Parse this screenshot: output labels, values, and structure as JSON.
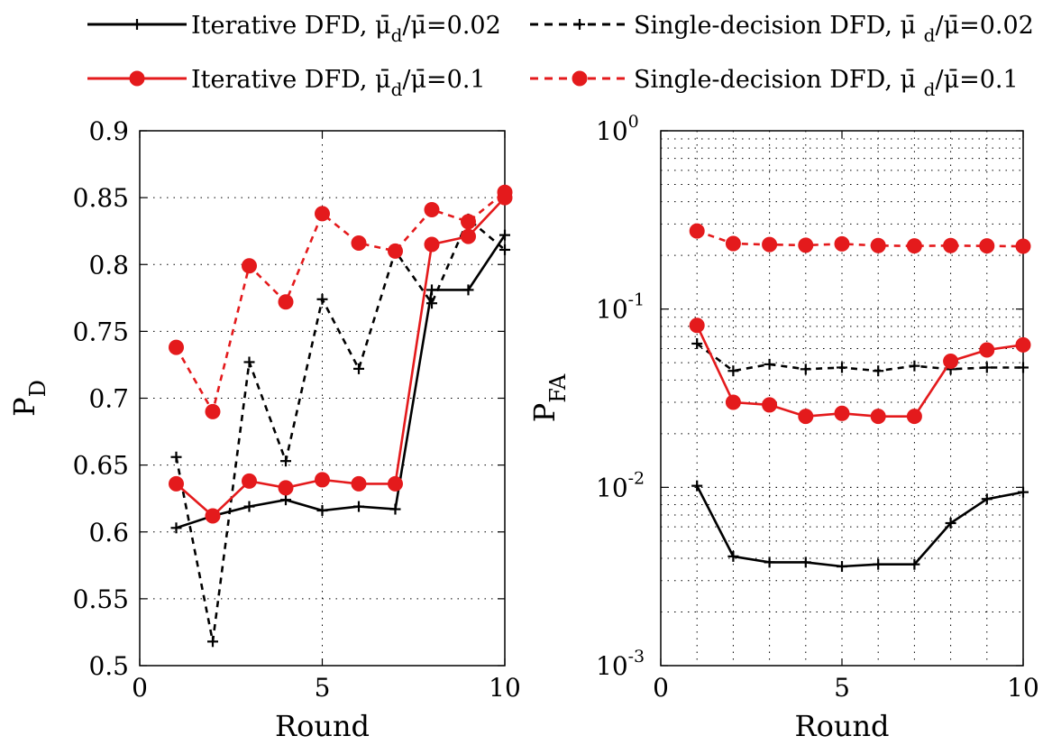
{
  "chart_data": [
    {
      "type": "line",
      "xlabel": "Round",
      "ylabel": "P",
      "ylabel_sub": "D",
      "xlim": [
        0,
        10
      ],
      "ylim": [
        0.5,
        0.9
      ],
      "xticks": [
        "0",
        "5",
        "10"
      ],
      "yticks": [
        "0.5",
        "0.55",
        "0.6",
        "0.65",
        "0.7",
        "0.75",
        "0.8",
        "0.85",
        "0.9"
      ],
      "yscale": "linear",
      "grid": true,
      "series": [
        {
          "name_key": 0,
          "x": [
            1,
            2,
            3,
            4,
            5,
            6,
            7,
            8,
            9,
            10
          ],
          "y": [
            0.603,
            0.612,
            0.619,
            0.624,
            0.616,
            0.619,
            0.617,
            0.781,
            0.781,
            0.822
          ]
        },
        {
          "name_key": 1,
          "x": [
            1,
            2,
            3,
            4,
            5,
            6,
            7,
            8,
            9,
            10
          ],
          "y": [
            0.656,
            0.518,
            0.727,
            0.653,
            0.774,
            0.722,
            0.81,
            0.771,
            0.834,
            0.811
          ]
        },
        {
          "name_key": 2,
          "x": [
            1,
            2,
            3,
            4,
            5,
            6,
            7,
            8,
            9,
            10
          ],
          "y": [
            0.636,
            0.612,
            0.638,
            0.633,
            0.639,
            0.636,
            0.636,
            0.815,
            0.821,
            0.85
          ]
        },
        {
          "name_key": 3,
          "x": [
            1,
            2,
            3,
            4,
            5,
            6,
            7,
            8,
            9,
            10
          ],
          "y": [
            0.738,
            0.69,
            0.799,
            0.772,
            0.838,
            0.816,
            0.81,
            0.841,
            0.832,
            0.854
          ]
        }
      ]
    },
    {
      "type": "line",
      "xlabel": "Round",
      "ylabel": "P",
      "ylabel_sub": "FA",
      "xlim": [
        0,
        10
      ],
      "ylim": [
        0.001,
        1
      ],
      "xticks": [
        "0",
        "5",
        "10"
      ],
      "yticks": [
        {
          "base": "10",
          "exp": "-3",
          "value": 0.001
        },
        {
          "base": "10",
          "exp": "-2",
          "value": 0.01
        },
        {
          "base": "10",
          "exp": "-1",
          "value": 0.1
        },
        {
          "base": "10",
          "exp": "0",
          "value": 1
        }
      ],
      "yscale": "log",
      "grid": true,
      "series": [
        {
          "name_key": 0,
          "x": [
            1,
            2,
            3,
            4,
            5,
            6,
            7,
            8,
            9,
            10
          ],
          "y": [
            0.0102,
            0.0041,
            0.0038,
            0.0038,
            0.0036,
            0.0037,
            0.0037,
            0.0063,
            0.0086,
            0.0094
          ]
        },
        {
          "name_key": 1,
          "x": [
            1,
            2,
            3,
            4,
            5,
            6,
            7,
            8,
            9,
            10
          ],
          "y": [
            0.064,
            0.045,
            0.049,
            0.046,
            0.047,
            0.045,
            0.048,
            0.046,
            0.047,
            0.047
          ]
        },
        {
          "name_key": 2,
          "x": [
            1,
            2,
            3,
            4,
            5,
            6,
            7,
            8,
            9,
            10
          ],
          "y": [
            0.081,
            0.03,
            0.029,
            0.025,
            0.026,
            0.025,
            0.025,
            0.051,
            0.059,
            0.063
          ]
        },
        {
          "name_key": 3,
          "x": [
            1,
            2,
            3,
            4,
            5,
            6,
            7,
            8,
            9,
            10
          ],
          "y": [
            0.274,
            0.233,
            0.23,
            0.228,
            0.232,
            0.227,
            0.226,
            0.227,
            0.226,
            0.225
          ]
        }
      ]
    }
  ],
  "legend": {
    "placement": "top",
    "entries": [
      {
        "label_prefix": "Iterative DFD, ",
        "symbol": "μ̄",
        "sub": "d",
        "suffix": "/μ̄=0.02",
        "color": "#000000",
        "dashed": false,
        "marker": "plus"
      },
      {
        "label_prefix": "Single-decision DFD, ",
        "symbol": "μ̄ ",
        "sub": "d",
        "suffix": "/μ̄=0.02",
        "color": "#000000",
        "dashed": true,
        "marker": "plus"
      },
      {
        "label_prefix": "Iterative DFD, ",
        "symbol": "μ̄",
        "sub": "d",
        "suffix": "/μ̄=0.1",
        "color": "#e41a1c",
        "dashed": false,
        "marker": "circle"
      },
      {
        "label_prefix": "Single-decision DFD, ",
        "symbol": "μ̄ ",
        "sub": "d",
        "suffix": "/μ̄=0.1",
        "color": "#e41a1c",
        "dashed": true,
        "marker": "circle"
      }
    ]
  }
}
